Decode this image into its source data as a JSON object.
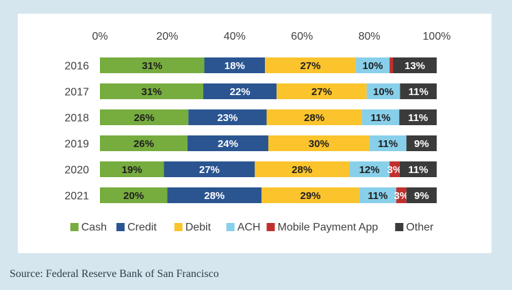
{
  "source_text": "Source: Federal Reserve Bank of San Francisco",
  "chart_data": {
    "type": "bar",
    "orientation": "horizontal",
    "stacked": true,
    "categories": [
      "2016",
      "2017",
      "2018",
      "2019",
      "2020",
      "2021"
    ],
    "xlim": [
      0,
      100
    ],
    "x_ticks": [
      "0%",
      "20%",
      "40%",
      "60%",
      "80%",
      "100%"
    ],
    "x_axis_position": "top",
    "grid": false,
    "legend_position": "bottom",
    "series": [
      {
        "name": "Cash",
        "color": "#77ac3f",
        "label_color": "#1f1f1f",
        "values": [
          31,
          31,
          26,
          26,
          19,
          20
        ],
        "labels": [
          "31%",
          "31%",
          "26%",
          "26%",
          "19%",
          "20%"
        ]
      },
      {
        "name": "Credit",
        "color": "#2a5591",
        "label_color": "#ffffff",
        "values": [
          18,
          22,
          23,
          24,
          27,
          28
        ],
        "labels": [
          "18%",
          "22%",
          "23%",
          "24%",
          "27%",
          "28%"
        ]
      },
      {
        "name": "Debit",
        "color": "#fbc42d",
        "label_color": "#1f1f1f",
        "values": [
          27,
          27,
          28,
          30,
          28,
          29
        ],
        "labels": [
          "27%",
          "27%",
          "28%",
          "30%",
          "28%",
          "29%"
        ]
      },
      {
        "name": "ACH",
        "color": "#88cfea",
        "label_color": "#1f1f1f",
        "values": [
          10,
          10,
          11,
          11,
          12,
          11
        ],
        "labels": [
          "10%",
          "10%",
          "11%",
          "11%",
          "12%",
          "11%"
        ]
      },
      {
        "name": "Mobile Payment App",
        "color": "#c0312e",
        "label_color": "#ffffff",
        "values": [
          1,
          0,
          0,
          0,
          3,
          3
        ],
        "labels": [
          "",
          "",
          "",
          "",
          "3%",
          "3%"
        ]
      },
      {
        "name": "Other",
        "color": "#3b3b3b",
        "label_color": "#ffffff",
        "values": [
          13,
          11,
          11,
          9,
          11,
          9
        ],
        "labels": [
          "13%",
          "11%",
          "11%",
          "9%",
          "11%",
          "9%"
        ]
      }
    ]
  }
}
